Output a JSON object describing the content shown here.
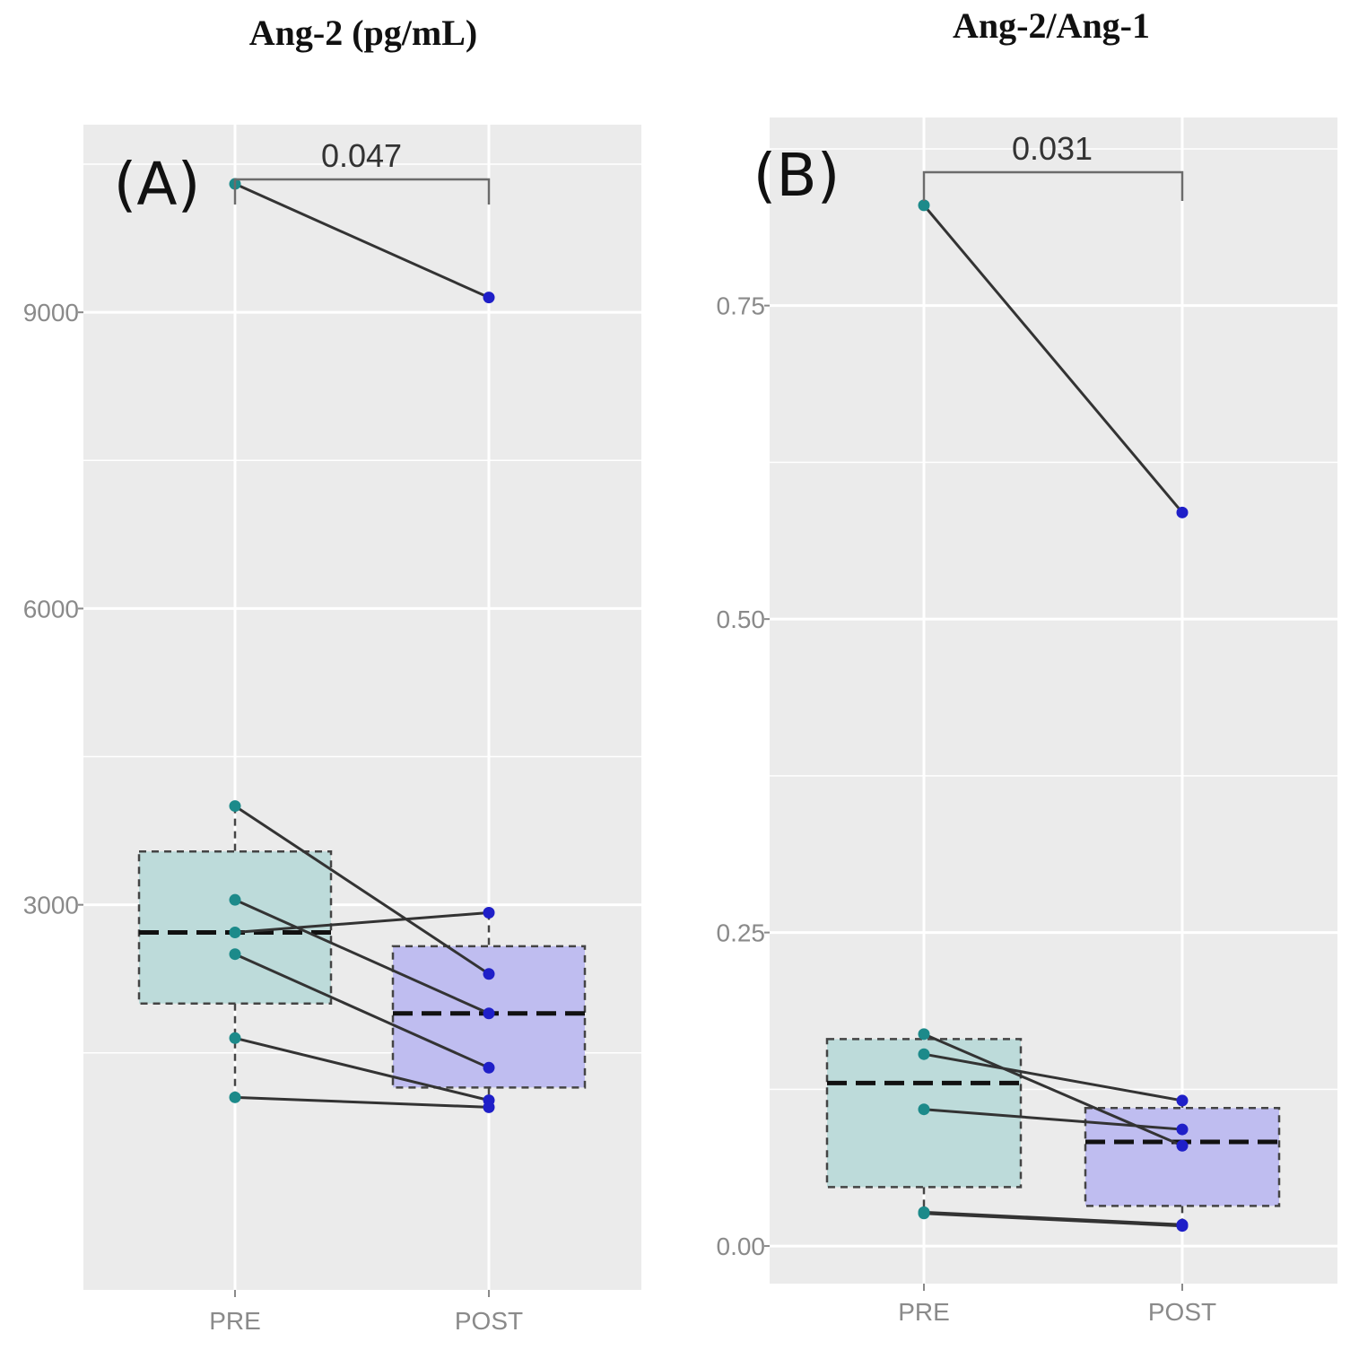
{
  "colors": {
    "panel_bg": "#ebebeb",
    "grid": "#ffffff",
    "pre_fill": "#bddbda",
    "post_fill": "#bfbdf0",
    "pre_point": "#1c8a8a",
    "post_point": "#1f1fc8",
    "line": "#333333",
    "tick_text": "#8a8a8a"
  },
  "chart_data": [
    {
      "type": "box",
      "panel_label": "(A)",
      "title": "Ang-2 (pg/mL)",
      "categories": [
        "PRE",
        "POST"
      ],
      "ylim": [
        -900,
        10900
      ],
      "yticks": [
        3000,
        6000,
        9000
      ],
      "ytick_labels": [
        "3000",
        "6000",
        "9000"
      ],
      "ygrid_minor": [
        1500,
        4500,
        7500,
        10500
      ],
      "pvalue": "0.047",
      "boxes": [
        {
          "group": "PRE",
          "q1": 2000,
          "median": 2720,
          "q3": 3540,
          "whisker_low": 1050,
          "whisker_high": 4000
        },
        {
          "group": "POST",
          "q1": 1150,
          "median": 1900,
          "q3": 2580,
          "whisker_low": 1000,
          "whisker_high": 2920
        }
      ],
      "pairs": [
        {
          "pre": 10300,
          "post": 9150
        },
        {
          "pre": 4000,
          "post": 2300
        },
        {
          "pre": 3050,
          "post": 1900
        },
        {
          "pre": 2720,
          "post": 2920
        },
        {
          "pre": 2500,
          "post": 1350
        },
        {
          "pre": 1650,
          "post": 1020
        },
        {
          "pre": 1050,
          "post": 950
        }
      ]
    },
    {
      "type": "box",
      "panel_label": "(B)",
      "title": "Ang-2/Ang-1",
      "categories": [
        "PRE",
        "POST"
      ],
      "ylim": [
        -0.03,
        0.9
      ],
      "yticks": [
        0.0,
        0.25,
        0.5,
        0.75
      ],
      "ytick_labels": [
        "0.00",
        "0.25",
        "0.50",
        "0.75"
      ],
      "ygrid_minor": [
        0.125,
        0.375,
        0.625,
        0.875
      ],
      "pvalue": "0.031",
      "boxes": [
        {
          "group": "PRE",
          "q1": 0.047,
          "median": 0.13,
          "q3": 0.165,
          "whisker_low": 0.026,
          "whisker_high": 0.17
        },
        {
          "group": "POST",
          "q1": 0.032,
          "median": 0.083,
          "q3": 0.11,
          "whisker_low": 0.016,
          "whisker_high": 0.116
        }
      ],
      "pairs": [
        {
          "pre": 0.83,
          "post": 0.585
        },
        {
          "pre": 0.169,
          "post": 0.08
        },
        {
          "pre": 0.153,
          "post": 0.116
        },
        {
          "pre": 0.109,
          "post": 0.093
        },
        {
          "pre": 0.027,
          "post": 0.017
        },
        {
          "pre": 0.026,
          "post": 0.016
        }
      ]
    }
  ]
}
